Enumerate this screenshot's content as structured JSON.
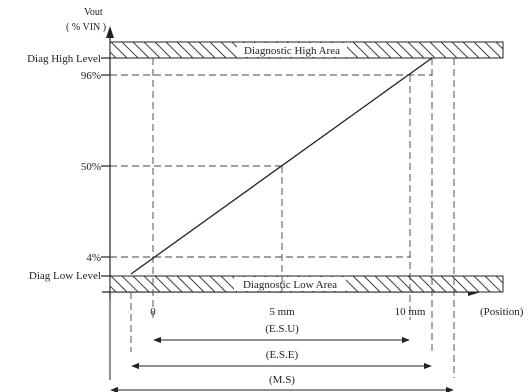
{
  "y_axis": {
    "title_line1": "Vout",
    "title_line2": "( % VIN )",
    "levels": {
      "diag_high": "Diag High Level",
      "p96": "96%",
      "p50": "50%",
      "p4": "4%",
      "diag_low": "Diag Low Level"
    }
  },
  "areas": {
    "high": "Diagnostic High Area",
    "low": "Diagnostic Low Area"
  },
  "x_axis": {
    "title": "(Position)",
    "ticks": {
      "zero": "0",
      "five": "5 mm",
      "ten": "10 mm"
    }
  },
  "ranges": {
    "esu": "(E.S.U)",
    "ese": "(E.S.E)",
    "ms": "(M.S)"
  }
}
